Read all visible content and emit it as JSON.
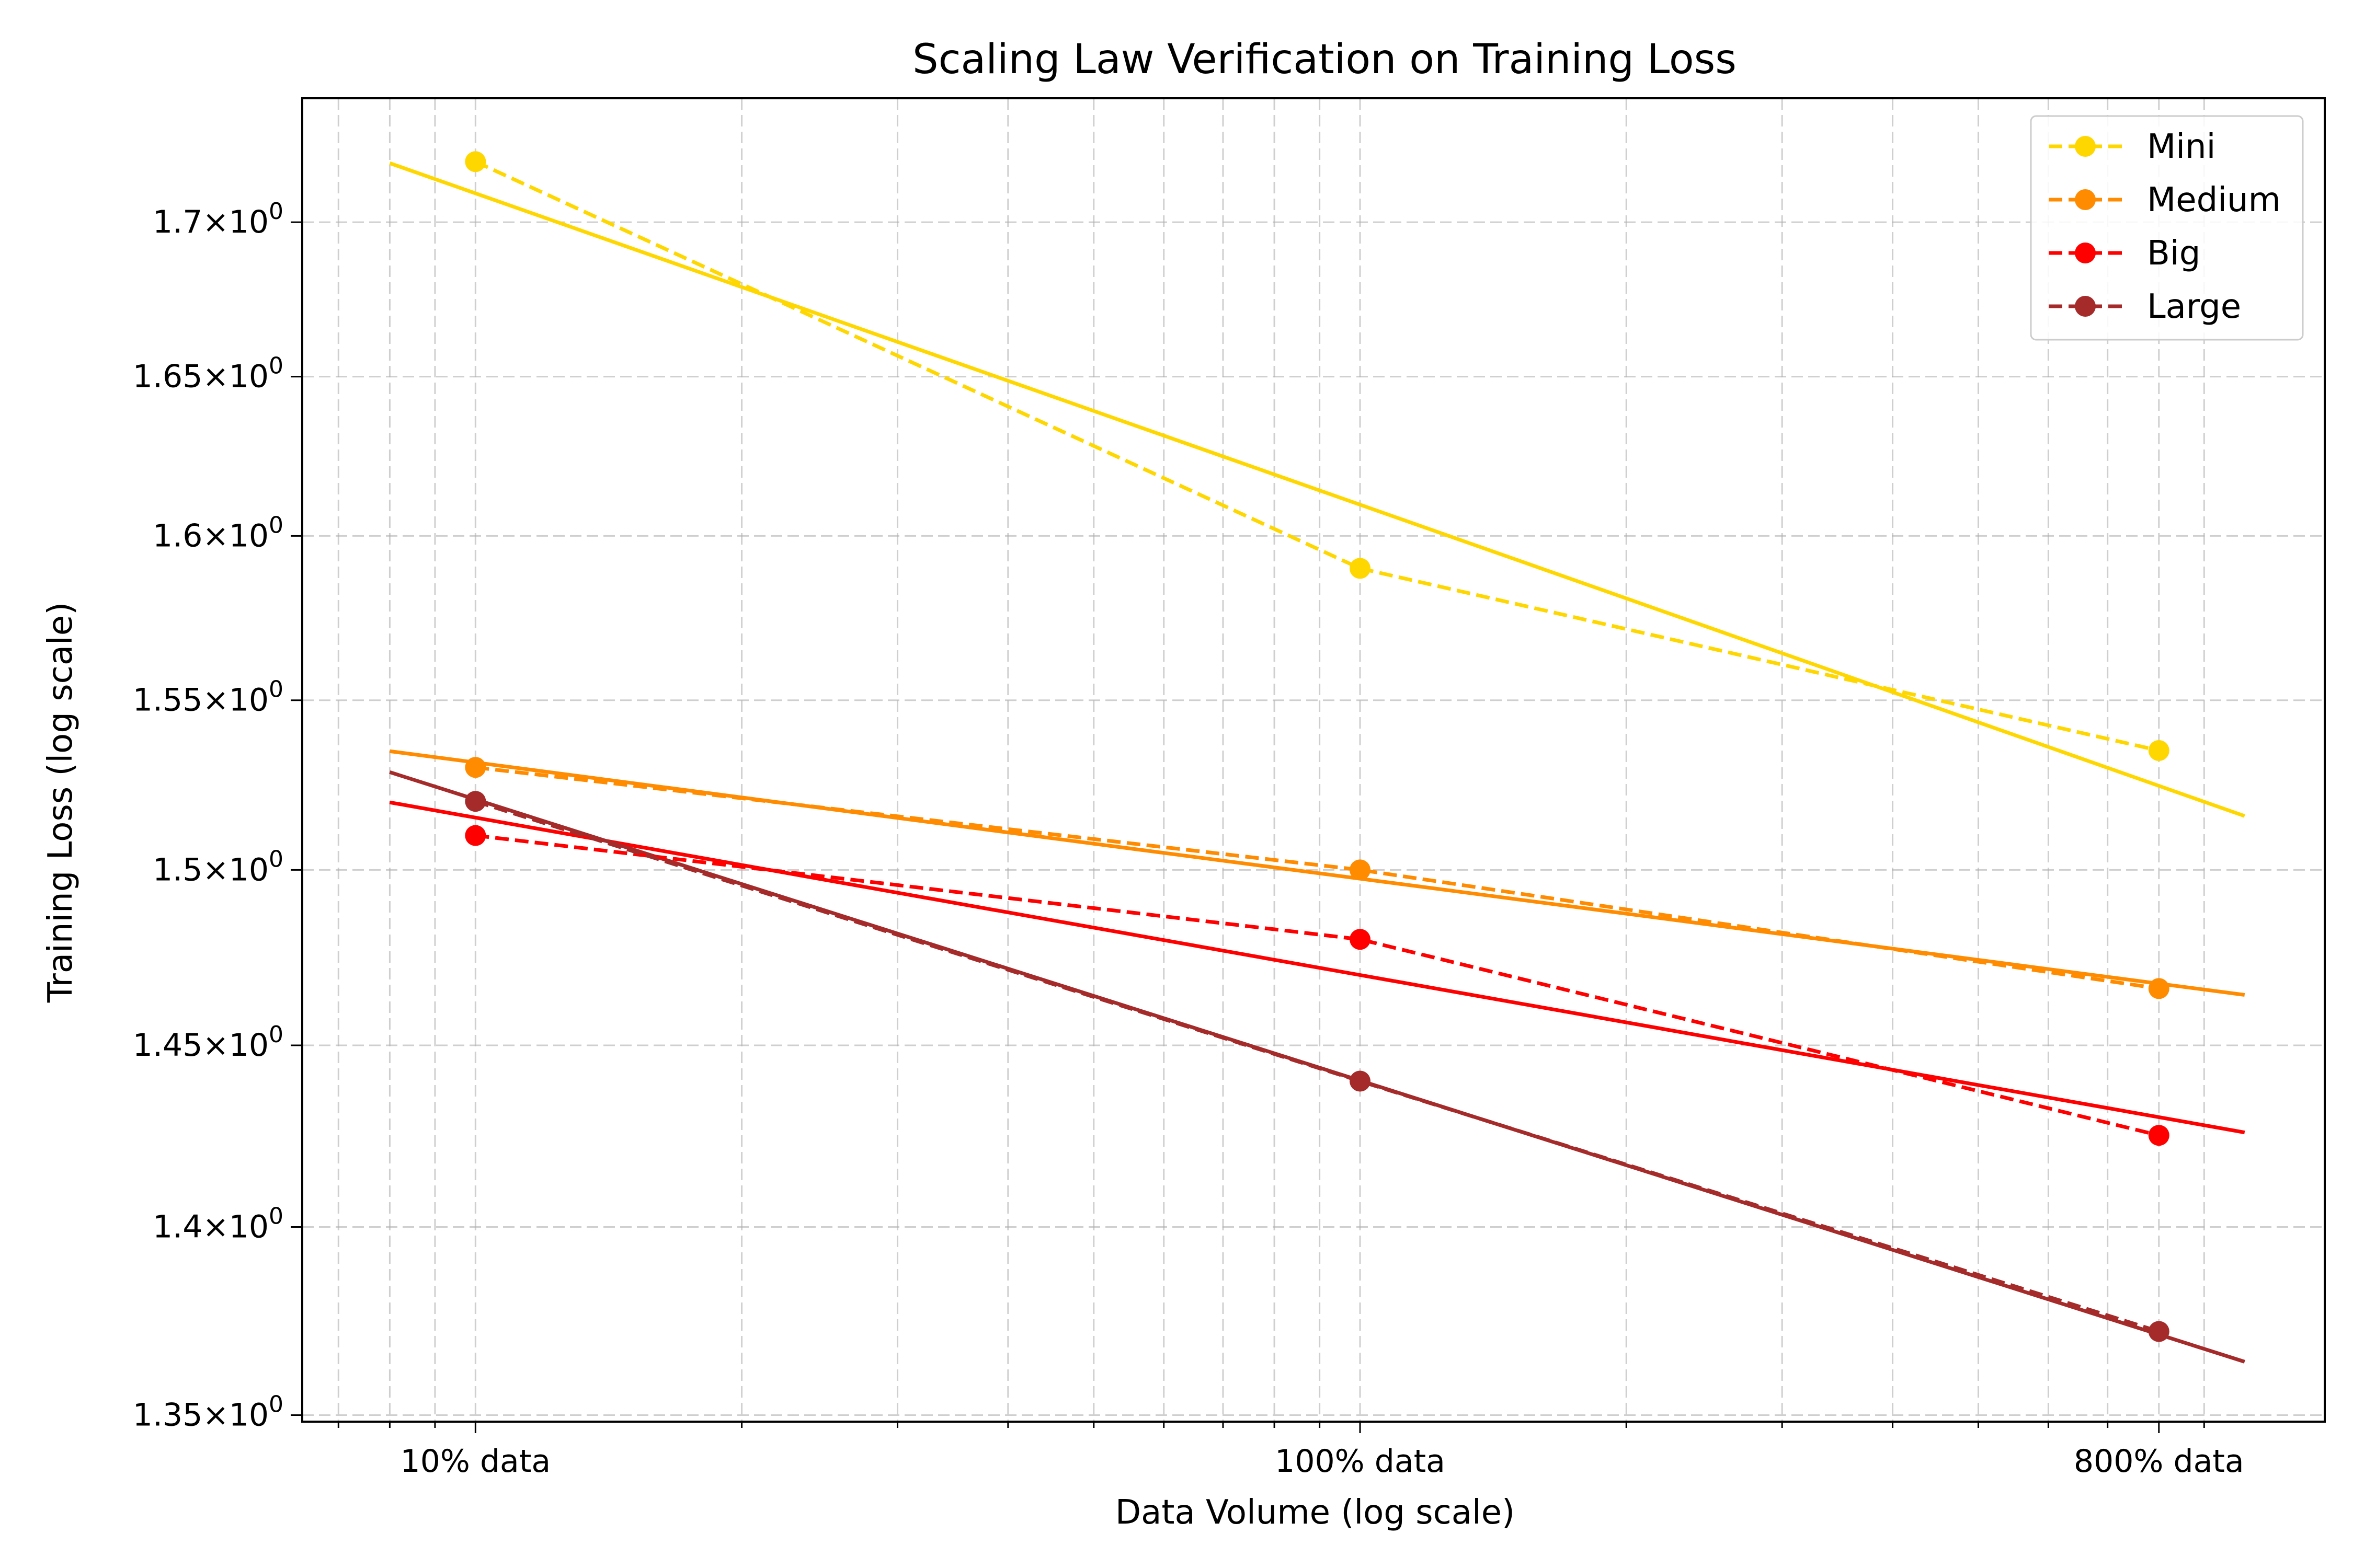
{
  "chart_data": {
    "type": "line",
    "title": "Scaling Law Verification on Training Loss",
    "xlabel": "Data Volume (log scale)",
    "ylabel": "Training Loss (log scale)",
    "x_scale": "log",
    "y_scale": "log",
    "x": [
      10,
      100,
      800
    ],
    "x_tick_labels": [
      "10% data",
      "100% data",
      "800% data"
    ],
    "xlim": [
      6.37,
      1232
    ],
    "ylim": [
      1.3483,
      1.7412
    ],
    "y_ticks": [
      1.35,
      1.4,
      1.45,
      1.5,
      1.55,
      1.6,
      1.65,
      1.7
    ],
    "y_tick_labels": [
      {
        "mant": "1.35",
        "exp": "0"
      },
      {
        "mant": "1.4",
        "exp": "0"
      },
      {
        "mant": "1.45",
        "exp": "0"
      },
      {
        "mant": "1.5",
        "exp": "0"
      },
      {
        "mant": "1.55",
        "exp": "0"
      },
      {
        "mant": "1.6",
        "exp": "0"
      },
      {
        "mant": "1.65",
        "exp": "0"
      },
      {
        "mant": "1.7",
        "exp": "0"
      }
    ],
    "fit_x_range": [
      8,
      1000
    ],
    "grid": true,
    "legend_position": "top-right",
    "series": [
      {
        "name": "Mini",
        "color": "#FFD700",
        "values": [
          1.72,
          1.59,
          1.535
        ],
        "fit": [
          1.7195,
          1.5157
        ]
      },
      {
        "name": "Medium",
        "color": "#FF8C00",
        "values": [
          1.53,
          1.5,
          1.466
        ],
        "fit": [
          1.5348,
          1.4642
        ]
      },
      {
        "name": "Big",
        "color": "#FF0000",
        "values": [
          1.51,
          1.48,
          1.425
        ],
        "fit": [
          1.5197,
          1.4258
        ]
      },
      {
        "name": "Large",
        "color": "#A52A2A",
        "values": [
          1.52,
          1.44,
          1.372
        ],
        "fit": [
          1.5286,
          1.364
        ]
      }
    ]
  }
}
